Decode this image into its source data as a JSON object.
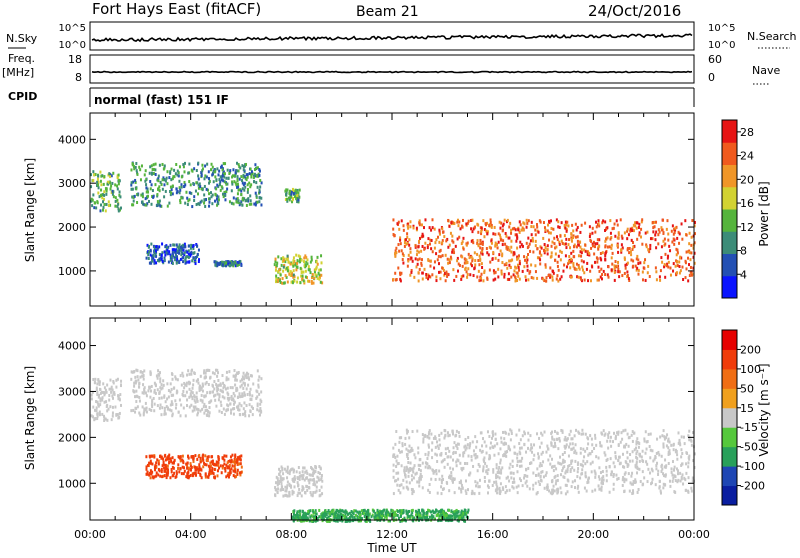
{
  "header": {
    "station": "Fort Hays East (fitACF)",
    "beam": "Beam 21",
    "date": "24/Oct/2016"
  },
  "status_panels": {
    "noise": {
      "left_label": "N.Sky",
      "right_label": "N.Search",
      "left_ticks": [
        "10^5",
        "10^0"
      ],
      "right_ticks": [
        "10^5",
        "10^0"
      ]
    },
    "freq": {
      "left_label": "Freq.",
      "unit": "[MHz]",
      "left_ticks": [
        "18",
        "8"
      ],
      "right_label": "Nave",
      "right_ticks": [
        "60",
        "0"
      ]
    },
    "cpid": {
      "label": "CPID",
      "text": "normal (fast) 151 IF"
    }
  },
  "chart_data": [
    {
      "type": "heatmap",
      "parameter": "power",
      "ylabel": "Slant Range [km]",
      "xlabel": "",
      "ylim": [
        200,
        4600
      ],
      "xlim": [
        0,
        24
      ],
      "yticks": [
        "4000",
        "3000",
        "2000",
        "1000"
      ],
      "colorbar": {
        "label": "Power [dB]",
        "ticks": [
          "28",
          "24",
          "20",
          "16",
          "12",
          "8",
          "4"
        ],
        "range": [
          0,
          30
        ],
        "colors": [
          "#0a14ff",
          "#2350b4",
          "#3c8c78",
          "#55b43c",
          "#d2d232",
          "#f09628",
          "#f05a1e",
          "#e61414"
        ]
      },
      "echo_bands": [
        {
          "label": "early-range-band",
          "t_start": 0.0,
          "t_end": 1.2,
          "range_low": 2400,
          "range_high": 3300,
          "power_db": 12
        },
        {
          "label": "morning-band",
          "t_start": 1.6,
          "t_end": 6.8,
          "range_low": 2500,
          "range_high": 3500,
          "power_db": 10
        },
        {
          "label": "morning-band-2",
          "t_start": 7.7,
          "t_end": 8.3,
          "range_low": 2600,
          "range_high": 2900,
          "power_db": 12
        },
        {
          "label": "dawn-patch",
          "t_start": 2.2,
          "t_end": 4.3,
          "range_low": 1200,
          "range_high": 1650,
          "power_db": 6
        },
        {
          "label": "dawn-patch-2",
          "t_start": 4.9,
          "t_end": 6.0,
          "range_low": 1150,
          "range_high": 1250,
          "power_db": 8
        },
        {
          "label": "morning-low",
          "t_start": 7.3,
          "t_end": 9.2,
          "range_low": 750,
          "range_high": 1400,
          "power_db": 16
        },
        {
          "label": "main-arc",
          "t_start": 12.0,
          "t_end": 24.0,
          "range_low": 800,
          "range_high": 2200,
          "power_db": 24
        }
      ]
    },
    {
      "type": "heatmap",
      "parameter": "velocity",
      "ylabel": "Slant Range [km]",
      "xlabel": "Time UT",
      "ylim": [
        200,
        4600
      ],
      "xlim": [
        0,
        24
      ],
      "xticks": [
        "00:00",
        "04:00",
        "08:00",
        "12:00",
        "16:00",
        "20:00",
        "00:00"
      ],
      "yticks": [
        "4000",
        "3000",
        "2000",
        "1000"
      ],
      "colorbar": {
        "label": "Velocity [m s⁻¹]",
        "ticks": [
          "200",
          "100",
          "50",
          "15",
          "-15",
          "-50",
          "-100",
          "-200"
        ],
        "colors": [
          "#0a1ea0",
          "#1e46b4",
          "#28a05a",
          "#55c83c",
          "#c8c8c8",
          "#f0a01e",
          "#f06e14",
          "#f03c0a",
          "#e60000"
        ]
      },
      "echo_bands": [
        {
          "label": "early-range-band",
          "t_start": 0.0,
          "t_end": 1.2,
          "range_low": 2400,
          "range_high": 3300,
          "velocity": 0
        },
        {
          "label": "morning-band",
          "t_start": 1.6,
          "t_end": 6.8,
          "range_low": 2500,
          "range_high": 3500,
          "velocity": 0
        },
        {
          "label": "dawn-patch",
          "t_start": 2.2,
          "t_end": 6.0,
          "range_low": 1150,
          "range_high": 1650,
          "velocity": 120
        },
        {
          "label": "morning-low",
          "t_start": 7.3,
          "t_end": 9.2,
          "range_low": 750,
          "range_high": 1400,
          "velocity": 0
        },
        {
          "label": "main-arc",
          "t_start": 12.0,
          "t_end": 24.0,
          "range_low": 800,
          "range_high": 2200,
          "velocity": 0
        },
        {
          "label": "ground-scatter-strip",
          "t_start": 8.0,
          "t_end": 15.0,
          "range_low": 200,
          "range_high": 450,
          "velocity": -60
        }
      ]
    }
  ]
}
